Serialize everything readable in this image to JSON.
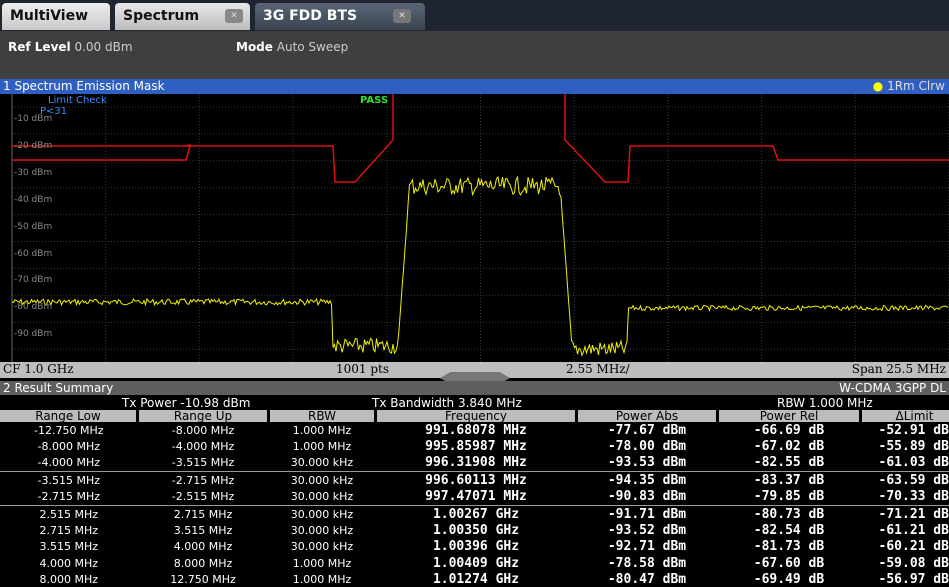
{
  "tabs": [
    "MultiView",
    "Spectrum",
    "3G FDD BTS"
  ],
  "settings": [
    {
      "label": "Ref Level",
      "value": "0.00 dBm"
    },
    {
      "label": "Mode",
      "value": "Auto Sweep"
    }
  ],
  "window1": {
    "title": "1 Spectrum Emission Mask",
    "trace": "1Rm Clrw",
    "limit_check": "Limit Check",
    "limit_line": "P<31",
    "result": "PASS",
    "y_labels": [
      "-10 dBm",
      "-20 dBm",
      "-30 dBm",
      "-40 dBm",
      "-50 dBm",
      "-60 dBm",
      "-70 dBm",
      "-80 dBm",
      "-90 dBm"
    ],
    "footer": [
      "CF 1.0 GHz",
      "1001 pts",
      "2.55 MHz/",
      "Span 25.5 MHz"
    ]
  },
  "window2": {
    "title": "2 Result Summary",
    "standard": "W-CDMA 3GPP DL",
    "info": [
      {
        "label": "Tx Power",
        "value": "-10.98 dBm"
      },
      {
        "label": "Tx Bandwidth",
        "value": "3.840 MHz"
      },
      {
        "label": "RBW",
        "value": "1.000 MHz"
      }
    ],
    "table": {
      "columns": [
        "Range Low",
        "Range Up",
        "RBW",
        "Frequency",
        "Power Abs",
        "Power Rel",
        "ΔLimit"
      ],
      "rows": [
        [
          "-12.750 MHz",
          "-8.000 MHz",
          "1.000 MHz",
          "991.68078 MHz",
          "-77.67 dBm",
          "-66.69 dB",
          "-52.91 dB"
        ],
        [
          "-8.000 MHz",
          "-4.000 MHz",
          "1.000 MHz",
          "995.85987 MHz",
          "-78.00 dBm",
          "-67.02 dB",
          "-55.89 dB"
        ],
        [
          "-4.000 MHz",
          "-3.515 MHz",
          "30.000 kHz",
          "996.31908 MHz",
          "-93.53 dBm",
          "-82.55 dB",
          "-61.03 dB"
        ],
        [
          "-3.515 MHz",
          "-2.715 MHz",
          "30.000 kHz",
          "996.60113 MHz",
          "-94.35 dBm",
          "-83.37 dB",
          "-63.59 dB"
        ],
        [
          "-2.715 MHz",
          "-2.515 MHz",
          "30.000 kHz",
          "997.47071 MHz",
          "-90.83 dBm",
          "-79.85 dB",
          "-70.33 dB"
        ],
        [
          "2.515 MHz",
          "2.715 MHz",
          "30.000 kHz",
          "1.00267 GHz",
          "-91.71 dBm",
          "-80.73 dB",
          "-71.21 dB"
        ],
        [
          "2.715 MHz",
          "3.515 MHz",
          "30.000 kHz",
          "1.00350 GHz",
          "-93.52 dBm",
          "-82.54 dB",
          "-61.21 dB"
        ],
        [
          "3.515 MHz",
          "4.000 MHz",
          "30.000 kHz",
          "1.00396 GHz",
          "-92.71 dBm",
          "-81.73 dB",
          "-60.21 dB"
        ],
        [
          "4.000 MHz",
          "8.000 MHz",
          "1.000 MHz",
          "1.00409 GHz",
          "-78.58 dBm",
          "-67.60 dB",
          "-59.08 dB"
        ],
        [
          "8.000 MHz",
          "12.750 MHz",
          "1.000 MHz",
          "1.01274 GHz",
          "-80.47 dBm",
          "-69.49 dB",
          "-56.97 dB"
        ]
      ]
    }
  }
}
